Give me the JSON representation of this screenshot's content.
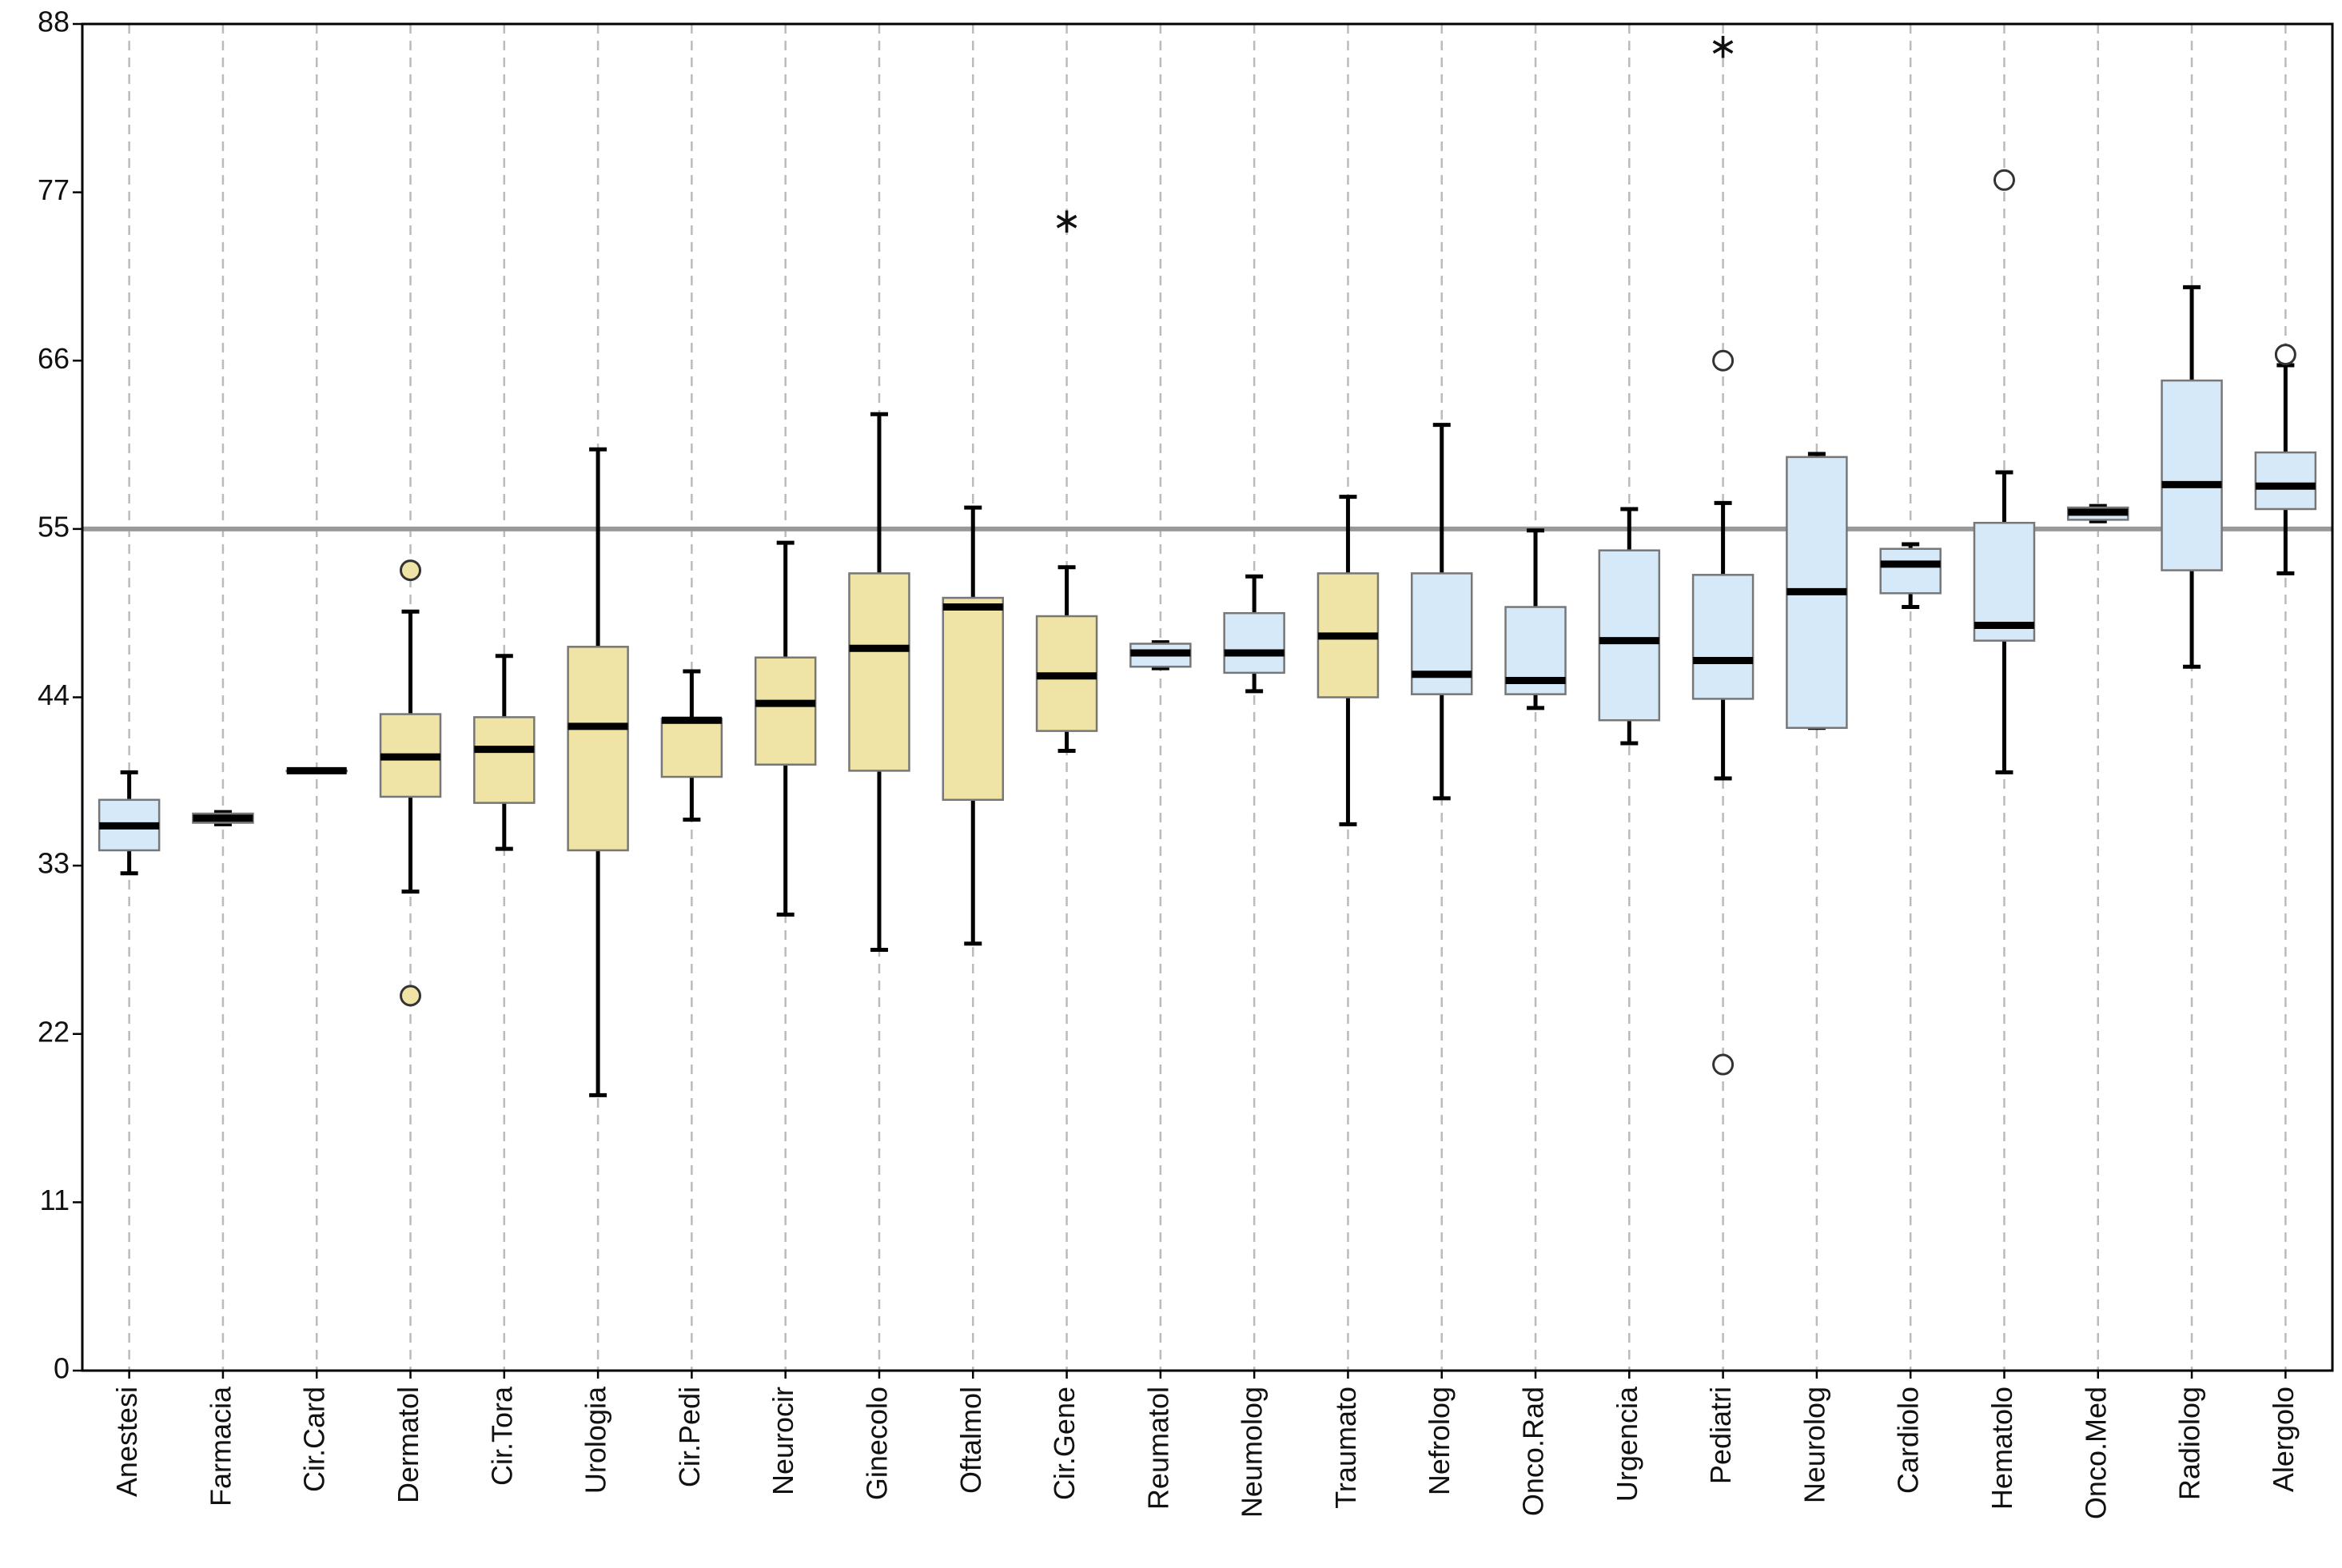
{
  "chart_data": {
    "type": "box",
    "categories": [
      "Anestesi",
      "Farmacia",
      "Cir.Card",
      "Dermatol",
      "Cir.Tora",
      "Urologia",
      "Cir.Pedi",
      "Neurocir",
      "Ginecolo",
      "Oftalmol",
      "Cir.Gene",
      "Reumatol",
      "Neumolog",
      "Traumato",
      "Nefrolog",
      "Onco.Rad",
      "Urgencia",
      "Pediatri",
      "Neurolog",
      "Cardiolo",
      "Hematolo",
      "Onco.Med",
      "Radiolog",
      "Alergolo"
    ],
    "low": [
      32.5,
      35.7,
      39.2,
      31.3,
      34.1,
      18.0,
      36.0,
      29.8,
      27.5,
      27.9,
      40.5,
      45.9,
      44.4,
      35.7,
      37.4,
      43.3,
      41.0,
      38.7,
      42.0,
      49.9,
      39.1,
      55.5,
      46.0,
      52.1
    ],
    "q1": [
      34.0,
      35.8,
      39.2,
      37.5,
      37.1,
      34.0,
      38.8,
      39.6,
      39.2,
      37.3,
      41.8,
      46.0,
      45.6,
      44.0,
      44.2,
      44.2,
      42.5,
      43.9,
      42.0,
      50.8,
      47.7,
      55.6,
      52.3,
      56.3
    ],
    "median": [
      35.6,
      36.1,
      39.2,
      40.1,
      40.6,
      42.1,
      42.5,
      43.6,
      47.2,
      49.9,
      45.4,
      46.9,
      46.9,
      48.0,
      45.5,
      45.1,
      47.7,
      46.4,
      50.9,
      52.7,
      48.7,
      56.1,
      57.9,
      57.8
    ],
    "q3": [
      37.3,
      36.4,
      39.2,
      42.9,
      42.7,
      47.3,
      42.6,
      46.6,
      52.1,
      50.5,
      49.3,
      47.5,
      49.5,
      52.1,
      52.1,
      49.9,
      53.6,
      52.0,
      59.7,
      53.7,
      55.4,
      56.4,
      64.7,
      60.0
    ],
    "high": [
      39.1,
      36.5,
      39.2,
      49.6,
      46.7,
      60.2,
      45.7,
      54.1,
      62.5,
      56.4,
      52.5,
      47.6,
      51.9,
      57.1,
      61.8,
      54.9,
      56.3,
      56.7,
      59.9,
      54.0,
      58.7,
      56.5,
      70.8,
      65.7
    ],
    "colors": [
      "#d6e9f9",
      "#d6e9f9",
      "#efe3a6",
      "#efe3a6",
      "#efe3a6",
      "#efe3a6",
      "#efe3a6",
      "#efe3a6",
      "#efe3a6",
      "#efe3a6",
      "#efe3a6",
      "#d6e9f9",
      "#d6e9f9",
      "#efe3a6",
      "#d6e9f9",
      "#d6e9f9",
      "#d6e9f9",
      "#d6e9f9",
      "#d6e9f9",
      "#d6e9f9",
      "#d6e9f9",
      "#d6e9f9",
      "#d6e9f9",
      "#d6e9f9"
    ],
    "outliers": [
      {
        "category": "Dermatol",
        "value": 52.3,
        "marker": "circle",
        "color": "#efe3a6"
      },
      {
        "category": "Dermatol",
        "value": 24.5,
        "marker": "circle",
        "color": "#efe3a6"
      },
      {
        "category": "Cir.Gene",
        "value": 75.1,
        "marker": "star",
        "color": "#f3e4a0"
      },
      {
        "category": "Pediatri",
        "value": 86.5,
        "marker": "star",
        "color": "#333333"
      },
      {
        "category": "Pediatri",
        "value": 66.0,
        "marker": "circle",
        "color": "#ffffff"
      },
      {
        "category": "Pediatri",
        "value": 20.0,
        "marker": "circle",
        "color": "#ffffff"
      },
      {
        "category": "Hematolo",
        "value": 77.8,
        "marker": "circle",
        "color": "#ffffff"
      },
      {
        "category": "Alergolo",
        "value": 66.4,
        "marker": "circle",
        "color": "#ffffff"
      }
    ],
    "reference_line": 55,
    "reference_color": "#999999",
    "ylim": [
      0,
      88
    ],
    "yticks": [
      0,
      11,
      22,
      33,
      44,
      55,
      66,
      77,
      88
    ],
    "grid": true
  }
}
